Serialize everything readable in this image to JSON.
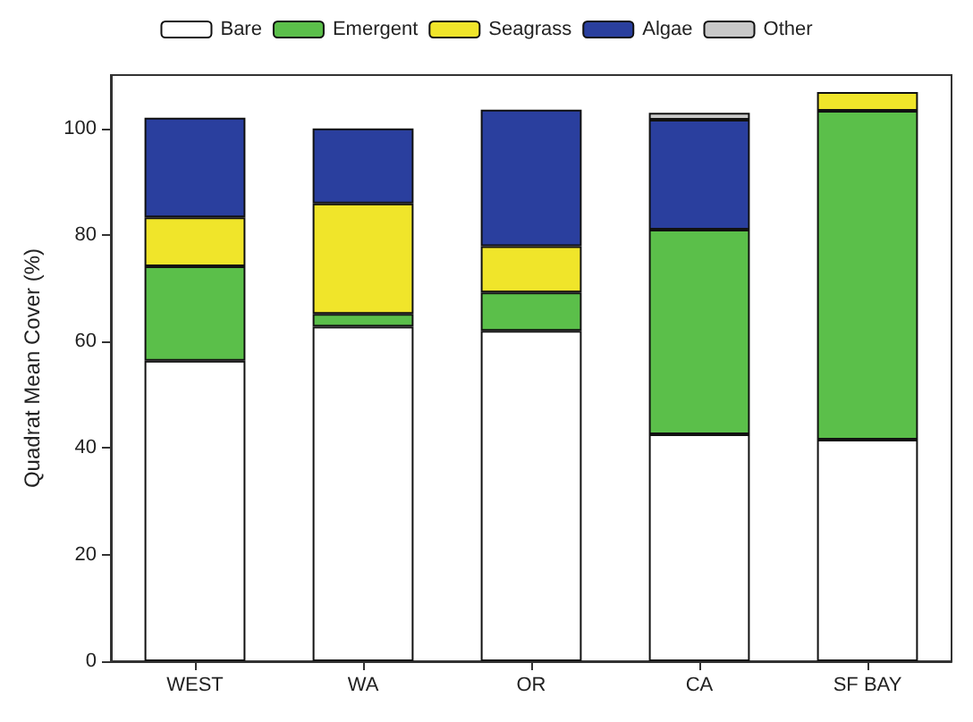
{
  "chart_data": {
    "type": "bar",
    "stacked": true,
    "ylabel": "Quadrat Mean Cover (%)",
    "categories": [
      "WEST",
      "WA",
      "OR",
      "CA",
      "SF BAY"
    ],
    "series": [
      {
        "name": "Bare",
        "color": "#ffffff",
        "values": [
          56.4,
          62.8,
          62,
          42.6,
          41.6
        ]
      },
      {
        "name": "Emergent",
        "color": "#5bbf4a",
        "values": [
          17.7,
          2.4,
          7.2,
          38.4,
          61.7
        ]
      },
      {
        "name": "Seagrass",
        "color": "#f0e52a",
        "values": [
          9.2,
          20.7,
          8.7,
          null,
          3.5
        ]
      },
      {
        "name": "Algae",
        "color": "#2a3f9e",
        "values": [
          18.7,
          14.1,
          25.6,
          20.6,
          null
        ]
      },
      {
        "name": "Other",
        "color": "#c8c8c8",
        "values": [
          null,
          null,
          null,
          1.3,
          null
        ]
      }
    ],
    "ylim": [
      0,
      110
    ],
    "yticks": [
      0,
      20,
      40,
      60,
      80,
      100
    ],
    "grid": false,
    "legend": "top"
  }
}
